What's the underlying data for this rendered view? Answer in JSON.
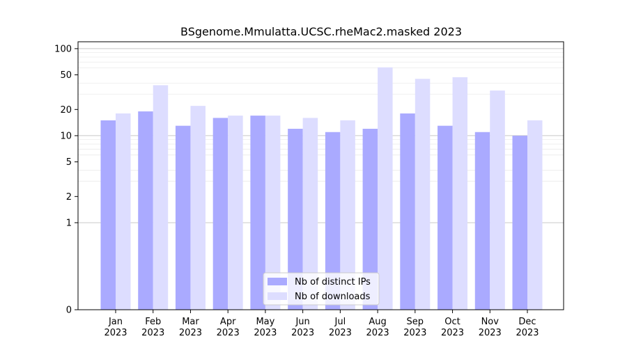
{
  "chart_data": {
    "type": "bar",
    "title": "BSgenome.Mmulatta.UCSC.rheMac2.masked 2023",
    "xlabel": "",
    "ylabel": "",
    "yscale": "symlog",
    "ylim": [
      0,
      120
    ],
    "yticks": [
      0,
      1,
      2,
      5,
      10,
      20,
      50,
      100
    ],
    "ytick_labels": [
      "0",
      "1",
      "2",
      "5",
      "10",
      "20",
      "50",
      "100"
    ],
    "categories": [
      "Jan\n2023",
      "Feb\n2023",
      "Mar\n2023",
      "Apr\n2023",
      "May\n2023",
      "Jun\n2023",
      "Jul\n2023",
      "Aug\n2023",
      "Sep\n2023",
      "Oct\n2023",
      "Nov\n2023",
      "Dec\n2023"
    ],
    "category_lines": [
      [
        "Jan",
        "2023"
      ],
      [
        "Feb",
        "2023"
      ],
      [
        "Mar",
        "2023"
      ],
      [
        "Apr",
        "2023"
      ],
      [
        "May",
        "2023"
      ],
      [
        "Jun",
        "2023"
      ],
      [
        "Jul",
        "2023"
      ],
      [
        "Aug",
        "2023"
      ],
      [
        "Sep",
        "2023"
      ],
      [
        "Oct",
        "2023"
      ],
      [
        "Nov",
        "2023"
      ],
      [
        "Dec",
        "2023"
      ]
    ],
    "series": [
      {
        "name": "Nb of distinct IPs",
        "color": "#aaaaff",
        "values": [
          15,
          19,
          13,
          16,
          17,
          12,
          11,
          12,
          18,
          13,
          11,
          10
        ]
      },
      {
        "name": "Nb of downloads",
        "color": "#ddddff",
        "values": [
          18,
          38,
          22,
          17,
          17,
          16,
          15,
          61,
          45,
          47,
          33,
          15
        ]
      }
    ],
    "grid": true,
    "legend_position": "lower center"
  }
}
